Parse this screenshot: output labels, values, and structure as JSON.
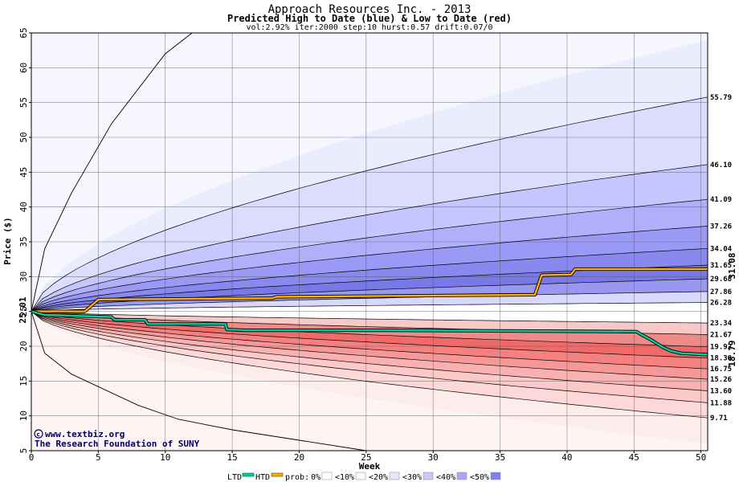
{
  "chart_data": {
    "type": "area",
    "title": "Approach Resources Inc. - 2013",
    "subtitle": "Predicted High to Date (blue) &  Low to Date (red)",
    "params": "vol:2.92% iter:2000 step:10 hurst:0.57 drift:0.07/0",
    "xlabel": "Week",
    "ylabel": "Price ($)",
    "xlim": [
      0,
      50.5
    ],
    "ylim": [
      5,
      65
    ],
    "xticks": [
      0,
      5,
      10,
      15,
      20,
      25,
      30,
      35,
      40,
      45,
      50
    ],
    "yticks": [
      5,
      10,
      15,
      20,
      25,
      30,
      35,
      40,
      45,
      50,
      55,
      60,
      65
    ],
    "grid": true,
    "start_price": 25.01,
    "start_label": "25.01",
    "final_high_label": "31.08",
    "final_low_label": "18.79",
    "percentile_end_labels": [
      "55.79",
      "46.10",
      "41.09",
      "37.26",
      "34.04",
      "31.65",
      "29.68",
      "27.86",
      "26.28",
      "23.34",
      "21.67",
      "19.92",
      "18.30",
      "16.75",
      "15.26",
      "13.60",
      "11.88",
      "9.71"
    ],
    "percentile_end_values": [
      55.79,
      46.1,
      41.09,
      37.26,
      34.04,
      31.65,
      29.68,
      27.86,
      26.28,
      23.34,
      21.67,
      19.92,
      18.3,
      16.75,
      15.26,
      13.6,
      11.88,
      9.71
    ],
    "outer_high_band": {
      "name": "max",
      "x": [
        0,
        1,
        3,
        6,
        10,
        12
      ],
      "y": [
        25.01,
        34,
        42,
        52,
        62,
        65
      ]
    },
    "outer_low_band": {
      "name": "min",
      "x": [
        0,
        1,
        3,
        5,
        8,
        11,
        15,
        20,
        25
      ],
      "y": [
        25.01,
        19,
        16,
        14.2,
        11.5,
        9.5,
        8,
        6.5,
        5
      ]
    },
    "high_to_date": {
      "name": "HTD",
      "color": "#ffb000",
      "x": [
        0,
        4,
        5,
        18,
        18.3,
        37.6,
        38.1,
        40.3,
        40.6,
        50.5
      ],
      "y": [
        25.01,
        25.01,
        26.7,
        26.9,
        27.1,
        27.4,
        30.2,
        30.3,
        31.08,
        31.08
      ]
    },
    "low_to_date": {
      "name": "LTD",
      "color": "#00d0a0",
      "x": [
        0,
        1,
        6,
        6.2,
        8.5,
        8.7,
        14.5,
        14.6,
        16,
        26,
        45.2,
        45.6,
        46.2,
        46.7,
        47.2,
        47.8,
        48.5,
        50.5
      ],
      "y": [
        25.01,
        24.5,
        24.2,
        23.8,
        23.8,
        23.2,
        23.2,
        22.4,
        22.3,
        22.3,
        22.1,
        21.6,
        21.0,
        20.4,
        19.8,
        19.3,
        19.0,
        18.79
      ]
    },
    "band_colors_high": [
      "#ececff",
      "#dcdcff",
      "#c6c6ff",
      "#b0b0fa",
      "#9a9af6",
      "#8888ee",
      "#7878e6",
      "#9898f0",
      "#d8d8fb"
    ],
    "band_colors_low": [
      "#fdecec",
      "#fdd8d8",
      "#fcc8c8",
      "#f9b0b0",
      "#f79898",
      "#f48080",
      "#f06a6a",
      "#ee8a8a",
      "#f8c9c9"
    ],
    "credit": {
      "line1": "www.textbiz.org",
      "line2": "The Research Foundation of SUNY"
    },
    "legend": {
      "ltd": "LTD",
      "htd": "HTD",
      "prob": "prob:",
      "items": [
        {
          "label": "0%",
          "color": "#ffffff"
        },
        {
          "label": "<10%",
          "color": "#f8f8ff"
        },
        {
          "label": "<20%",
          "color": "#e6e6fa"
        },
        {
          "label": "<30%",
          "color": "#c8c8f8"
        },
        {
          "label": "<40%",
          "color": "#a8a8f4"
        },
        {
          "label": "<50%",
          "color": "#8080ee"
        }
      ]
    }
  }
}
